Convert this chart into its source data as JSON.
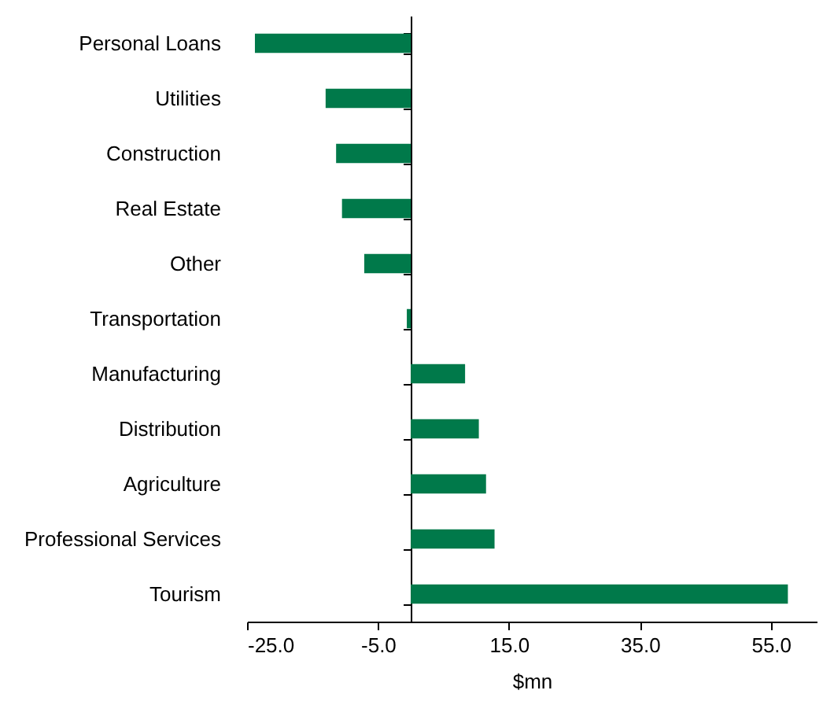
{
  "chart_data": {
    "type": "bar",
    "orientation": "horizontal",
    "xlabel": "$mn",
    "categories": [
      "Personal Loans",
      "Utilities",
      "Construction",
      "Real Estate",
      "Other",
      "Transportation",
      "Manufacturing",
      "Distribution",
      "Agriculture",
      "Professional Services",
      "Tourism"
    ],
    "values": [
      -23.8,
      -13.0,
      -11.4,
      -10.5,
      -7.1,
      -0.6,
      8.3,
      10.4,
      11.5,
      12.8,
      57.6
    ],
    "color": "#00794a",
    "xlim": [
      -25,
      62
    ],
    "xticks": [
      {
        "value": -25,
        "label": "-25.0"
      },
      {
        "value": -5,
        "label": "-5.0"
      },
      {
        "value": 15,
        "label": "15.0"
      },
      {
        "value": 35,
        "label": "35.0"
      },
      {
        "value": 55,
        "label": "55.0"
      }
    ],
    "grid": false
  }
}
